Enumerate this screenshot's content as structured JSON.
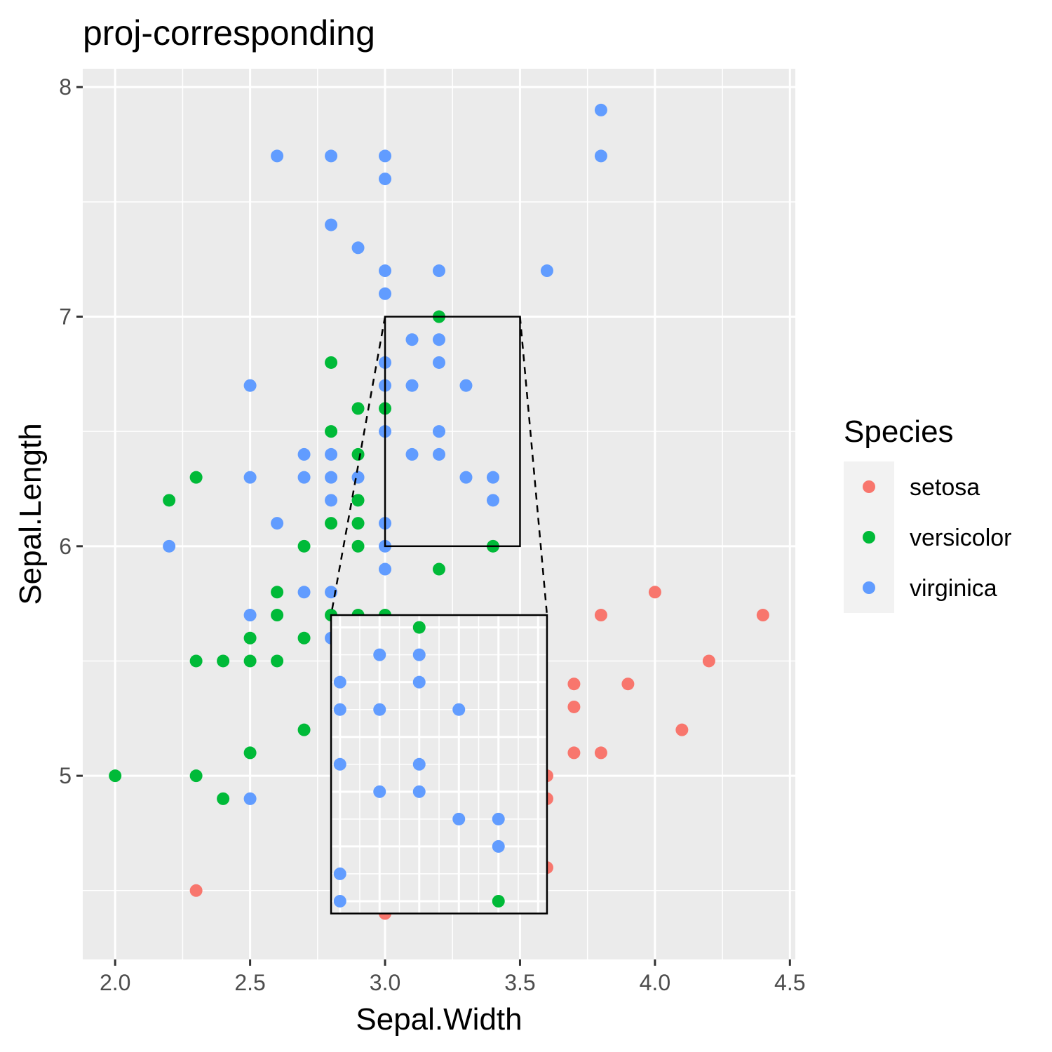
{
  "chart_data": {
    "type": "scatter",
    "title": "proj-corresponding",
    "xlabel": "Sepal.Width",
    "ylabel": "Sepal.Length",
    "xlim": [
      1.88,
      4.52
    ],
    "ylim": [
      4.2,
      8.08
    ],
    "x_ticks": [
      "2.0",
      "2.5",
      "3.0",
      "3.5",
      "4.0",
      "4.5"
    ],
    "y_ticks": [
      "5",
      "6",
      "7",
      "8"
    ],
    "x_tick_values": [
      2.0,
      2.5,
      3.0,
      3.5,
      4.0,
      4.5
    ],
    "y_tick_values": [
      5,
      6,
      7,
      8
    ],
    "grid": true,
    "legend_position": "right",
    "legend_title": "Species",
    "series": [
      {
        "name": "setosa",
        "color": "#F8766D",
        "points": [
          [
            2.3,
            4.5
          ],
          [
            3.0,
            4.4
          ],
          [
            3.6,
            4.6
          ],
          [
            3.6,
            4.9
          ],
          [
            3.6,
            5.0
          ],
          [
            3.7,
            5.1
          ],
          [
            3.8,
            5.1
          ],
          [
            3.7,
            5.3
          ],
          [
            3.7,
            5.4
          ],
          [
            3.9,
            5.4
          ],
          [
            4.1,
            5.2
          ],
          [
            4.2,
            5.5
          ],
          [
            3.8,
            5.7
          ],
          [
            4.4,
            5.7
          ],
          [
            4.0,
            5.8
          ]
        ]
      },
      {
        "name": "versicolor",
        "color": "#00BA38",
        "points": [
          [
            2.0,
            5.0
          ],
          [
            2.3,
            5.0
          ],
          [
            2.4,
            4.9
          ],
          [
            2.5,
            5.1
          ],
          [
            2.7,
            5.2
          ],
          [
            2.3,
            5.5
          ],
          [
            2.4,
            5.5
          ],
          [
            2.5,
            5.5
          ],
          [
            2.6,
            5.5
          ],
          [
            2.5,
            5.6
          ],
          [
            2.7,
            5.6
          ],
          [
            2.6,
            5.7
          ],
          [
            2.6,
            5.8
          ],
          [
            2.8,
            5.7
          ],
          [
            2.9,
            5.7
          ],
          [
            3.0,
            5.7
          ],
          [
            2.2,
            6.2
          ],
          [
            2.3,
            6.3
          ],
          [
            2.7,
            6.0
          ],
          [
            2.9,
            6.0
          ],
          [
            3.4,
            6.0
          ],
          [
            3.2,
            5.9
          ],
          [
            2.8,
            6.1
          ],
          [
            2.9,
            6.1
          ],
          [
            2.9,
            6.2
          ],
          [
            2.9,
            6.4
          ],
          [
            2.8,
            6.5
          ],
          [
            2.9,
            6.6
          ],
          [
            3.0,
            6.6
          ],
          [
            2.8,
            6.8
          ],
          [
            3.2,
            7.0
          ]
        ]
      },
      {
        "name": "virginica",
        "color": "#619CFF",
        "points": [
          [
            2.5,
            4.9
          ],
          [
            2.2,
            6.0
          ],
          [
            2.5,
            5.7
          ],
          [
            2.7,
            5.8
          ],
          [
            2.8,
            5.8
          ],
          [
            2.8,
            5.6
          ],
          [
            2.5,
            6.3
          ],
          [
            2.6,
            6.1
          ],
          [
            2.7,
            6.3
          ],
          [
            2.7,
            6.4
          ],
          [
            2.8,
            6.2
          ],
          [
            2.8,
            6.3
          ],
          [
            2.8,
            6.4
          ],
          [
            2.9,
            6.3
          ],
          [
            2.5,
            6.7
          ],
          [
            3.0,
            6.1
          ],
          [
            3.0,
            6.0
          ],
          [
            3.0,
            5.9
          ],
          [
            3.0,
            6.5
          ],
          [
            3.0,
            6.7
          ],
          [
            3.0,
            6.8
          ],
          [
            3.1,
            6.4
          ],
          [
            3.1,
            6.7
          ],
          [
            3.1,
            6.9
          ],
          [
            3.2,
            6.4
          ],
          [
            3.2,
            6.5
          ],
          [
            3.2,
            6.8
          ],
          [
            3.2,
            6.9
          ],
          [
            3.3,
            6.3
          ],
          [
            3.3,
            6.7
          ],
          [
            3.4,
            6.2
          ],
          [
            3.4,
            6.3
          ],
          [
            3.0,
            7.1
          ],
          [
            3.0,
            7.2
          ],
          [
            3.2,
            7.2
          ],
          [
            2.9,
            7.3
          ],
          [
            2.8,
            7.4
          ],
          [
            3.6,
            7.2
          ],
          [
            3.0,
            7.6
          ],
          [
            2.6,
            7.7
          ],
          [
            2.8,
            7.7
          ],
          [
            3.0,
            7.7
          ],
          [
            3.8,
            7.7
          ],
          [
            3.8,
            7.9
          ]
        ]
      }
    ],
    "zoom": {
      "source_window": {
        "xlim": [
          3.0,
          3.5
        ],
        "ylim": [
          6.0,
          7.0
        ]
      },
      "inset_window": {
        "xlim": [
          2.8,
          3.6
        ],
        "ylim": [
          4.4,
          5.7
        ]
      },
      "inset_points": [
        {
          "series": "versicolor",
          "points": [
            [
              3.2,
              7.0
            ],
            [
              3.4,
              6.0
            ]
          ]
        },
        {
          "series": "virginica",
          "points": [
            [
              3.0,
              6.8
            ],
            [
              3.0,
              6.7
            ],
            [
              3.0,
              6.5
            ],
            [
              3.0,
              6.1
            ],
            [
              3.0,
              6.0
            ],
            [
              3.1,
              6.9
            ],
            [
              3.1,
              6.7
            ],
            [
              3.1,
              6.4
            ],
            [
              3.2,
              6.9
            ],
            [
              3.2,
              6.8
            ],
            [
              3.2,
              6.5
            ],
            [
              3.2,
              6.4
            ],
            [
              3.3,
              6.7
            ],
            [
              3.3,
              6.3
            ],
            [
              3.4,
              6.3
            ],
            [
              3.4,
              6.2
            ]
          ]
        }
      ]
    }
  }
}
